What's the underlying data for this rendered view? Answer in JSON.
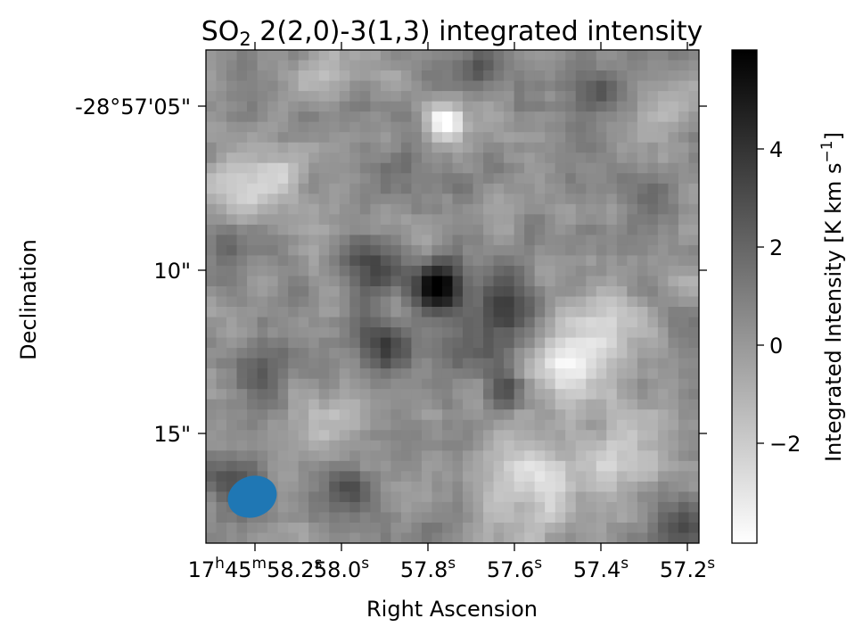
{
  "chart_data": {
    "type": "heatmap",
    "title_main": "SO",
    "title_sub": "2",
    "title_rest": " 2(2,0)-3(1,3) integrated intensity",
    "xlabel": "Right Ascension",
    "ylabel": "Declination",
    "x_ticks": [
      {
        "base": "17",
        "sup1": "h",
        "mid": "45",
        "sup2": "m",
        "tail": "58.2",
        "sup3": "s"
      },
      {
        "base": "58.0",
        "sup1": "s"
      },
      {
        "base": "57.8",
        "sup1": "s"
      },
      {
        "base": "57.6",
        "sup1": "s"
      },
      {
        "base": "57.4",
        "sup1": "s"
      },
      {
        "base": "57.2",
        "sup1": "s"
      }
    ],
    "y_ticks": [
      "-28°57'05\"",
      "10\"",
      "15\""
    ],
    "colorbar": {
      "label_main": "Integrated Intensity [K km s",
      "label_sup": "−1",
      "label_end": "]",
      "ticks": [
        "4",
        "2",
        "0",
        "−2"
      ],
      "vmin": -3.9,
      "vmax": 5.9,
      "colormap": "gray_r"
    },
    "beam": {
      "color": "#1f77b4"
    },
    "image_blobs": [
      {
        "x": 0.49,
        "y": 0.15,
        "amp": -4.5,
        "s": 0.025
      },
      {
        "x": 0.07,
        "y": 0.28,
        "amp": -2.8,
        "s": 0.05
      },
      {
        "x": 0.47,
        "y": 0.48,
        "amp": 5.0,
        "s": 0.035
      },
      {
        "x": 0.33,
        "y": 0.44,
        "amp": 3.0,
        "s": 0.04
      },
      {
        "x": 0.36,
        "y": 0.6,
        "amp": 3.2,
        "s": 0.035
      },
      {
        "x": 0.62,
        "y": 0.51,
        "amp": 2.5,
        "s": 0.045
      },
      {
        "x": 0.55,
        "y": 0.58,
        "amp": 2.0,
        "s": 0.06
      },
      {
        "x": 0.8,
        "y": 0.58,
        "amp": -2.8,
        "s": 0.06
      },
      {
        "x": 0.72,
        "y": 0.65,
        "amp": -2.5,
        "s": 0.05
      },
      {
        "x": 0.25,
        "y": 0.73,
        "amp": -2.3,
        "s": 0.05
      },
      {
        "x": 0.67,
        "y": 0.88,
        "amp": -3.0,
        "s": 0.07
      },
      {
        "x": 0.85,
        "y": 0.82,
        "amp": -2.5,
        "s": 0.06
      },
      {
        "x": 0.56,
        "y": 0.04,
        "amp": 2.5,
        "s": 0.03
      },
      {
        "x": 0.23,
        "y": 0.05,
        "amp": -1.5,
        "s": 0.04
      },
      {
        "x": 0.28,
        "y": 0.9,
        "amp": 2.5,
        "s": 0.035
      },
      {
        "x": 0.05,
        "y": 0.88,
        "amp": 2.5,
        "s": 0.04
      },
      {
        "x": 0.1,
        "y": 0.66,
        "amp": 2.0,
        "s": 0.035
      },
      {
        "x": 0.24,
        "y": 0.68,
        "amp": 2.0,
        "s": 0.03
      },
      {
        "x": 0.8,
        "y": 0.08,
        "amp": 2.2,
        "s": 0.03
      },
      {
        "x": 0.92,
        "y": 0.3,
        "amp": 2.0,
        "s": 0.03
      },
      {
        "x": 0.04,
        "y": 0.39,
        "amp": 2.0,
        "s": 0.03
      },
      {
        "x": 0.61,
        "y": 0.69,
        "amp": 2.0,
        "s": 0.03
      },
      {
        "x": 0.98,
        "y": 0.96,
        "amp": 2.5,
        "s": 0.035
      },
      {
        "x": 0.4,
        "y": 0.22,
        "amp": 1.5,
        "s": 0.03
      },
      {
        "x": 0.15,
        "y": 0.25,
        "amp": -1.8,
        "s": 0.04
      },
      {
        "x": 0.93,
        "y": 0.12,
        "amp": -1.5,
        "s": 0.04
      }
    ]
  }
}
